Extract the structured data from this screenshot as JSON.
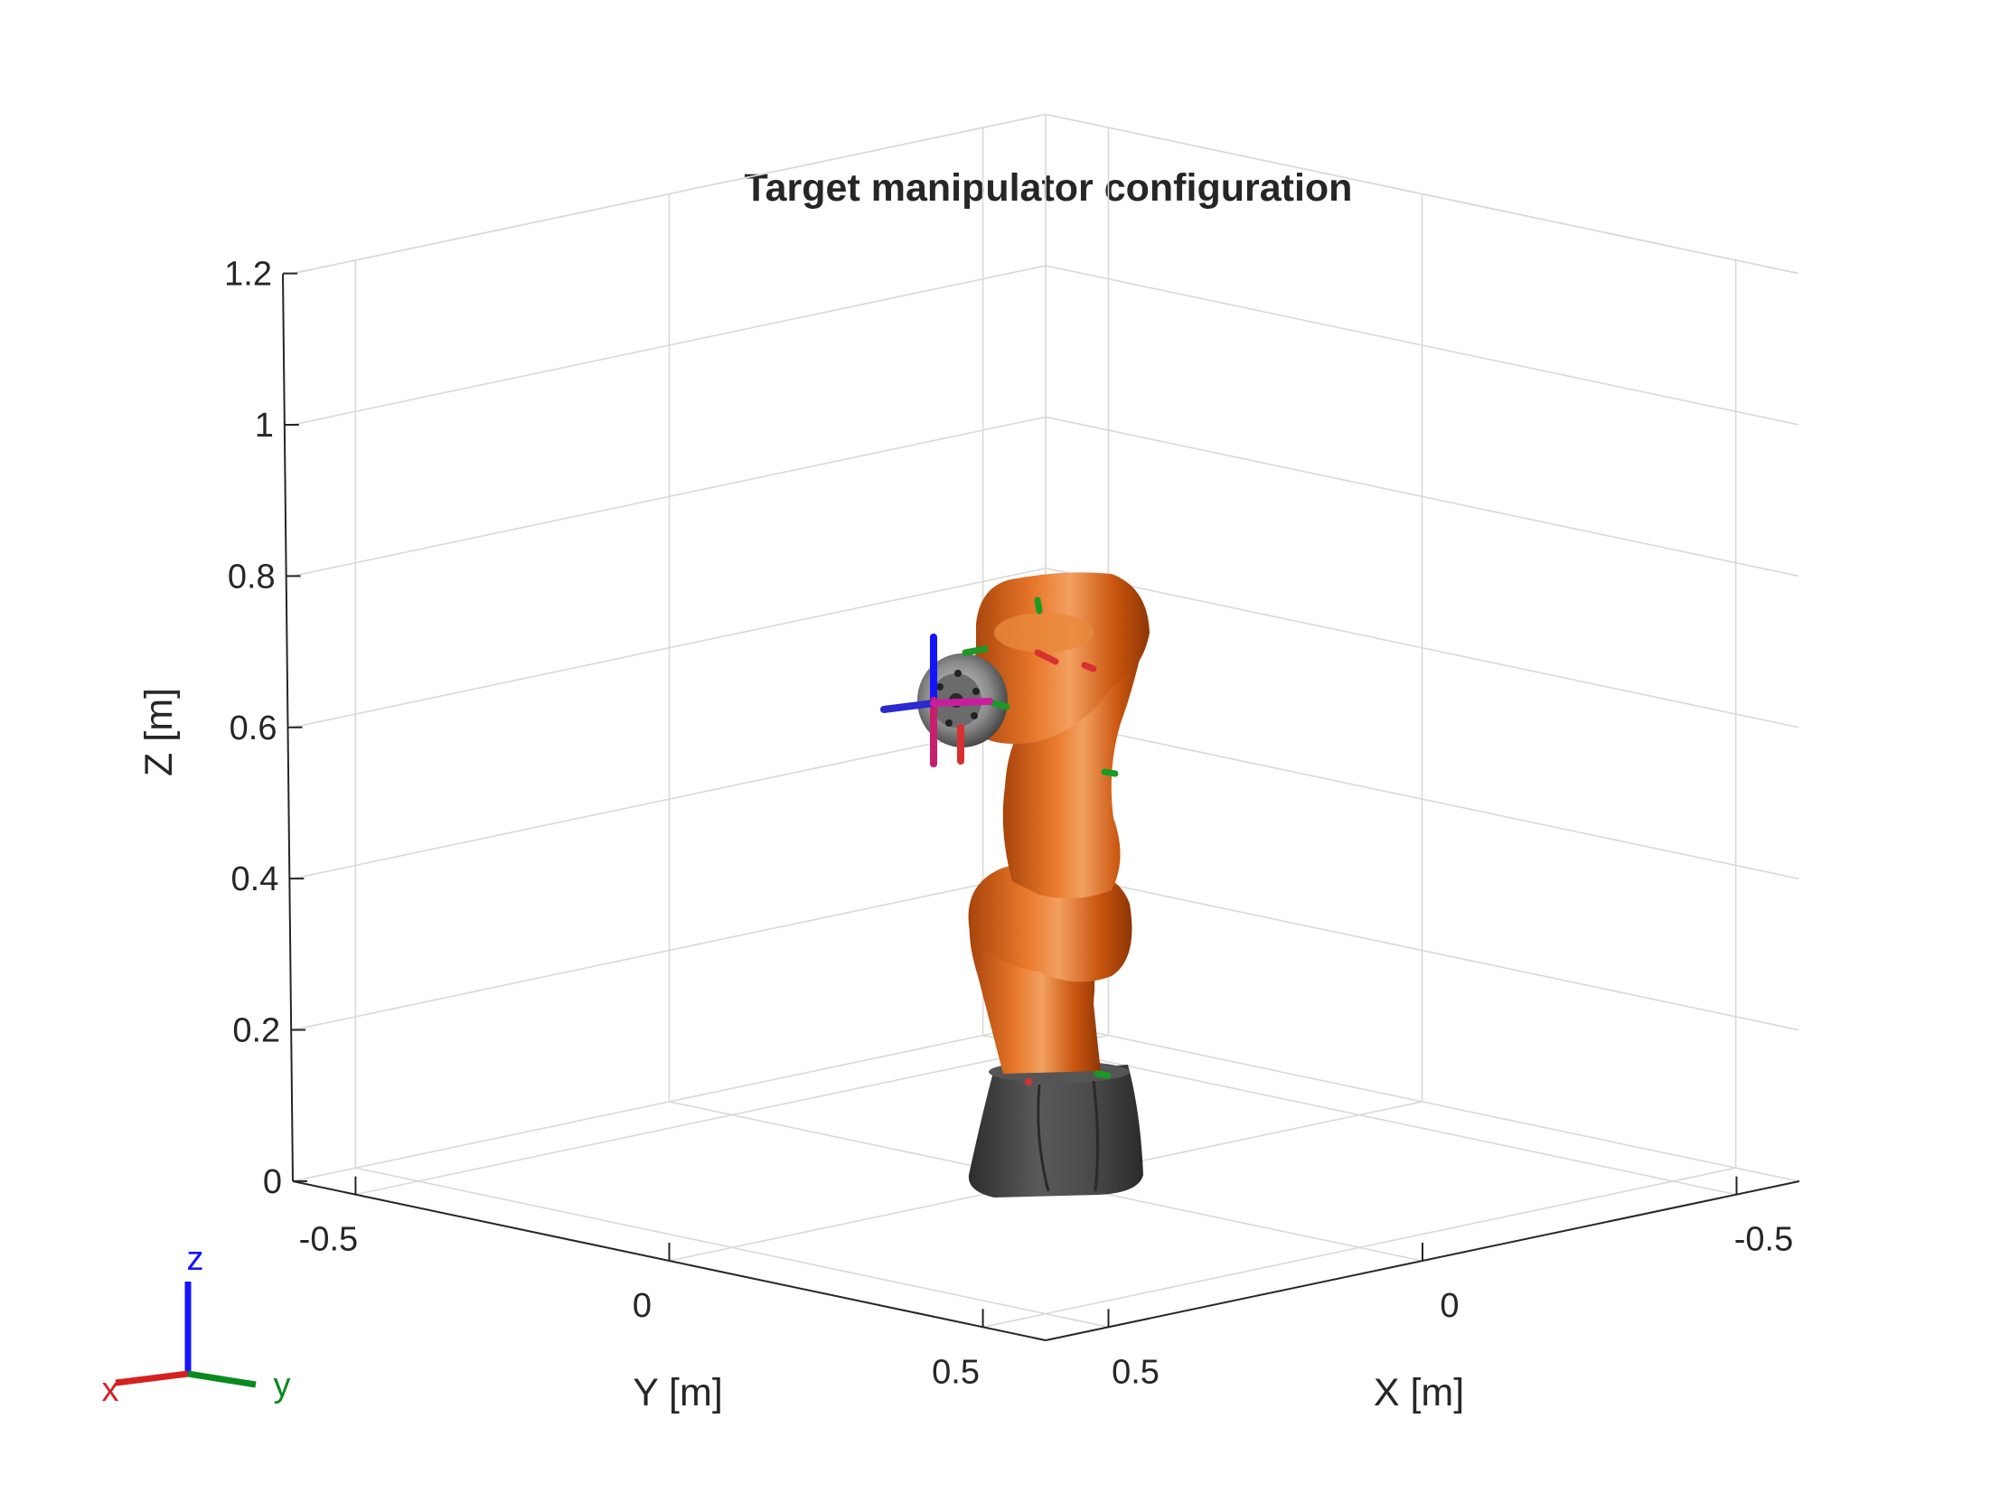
{
  "chart_data": {
    "type": "3d-robot-visualization",
    "title": "Target manipulator configuration",
    "xlabel": "X [m]",
    "ylabel": "Y [m]",
    "zlabel": "Z [m]",
    "x_ticks": [
      {
        "value": 0.5,
        "label": "0.5"
      },
      {
        "value": 0,
        "label": "0"
      },
      {
        "value": -0.5,
        "label": "-0.5"
      }
    ],
    "y_ticks": [
      {
        "value": -0.5,
        "label": "-0.5"
      },
      {
        "value": 0,
        "label": "0"
      },
      {
        "value": 0.5,
        "label": "0.5"
      }
    ],
    "z_ticks": [
      {
        "value": 0,
        "label": "0"
      },
      {
        "value": 0.2,
        "label": "0.2"
      },
      {
        "value": 0.4,
        "label": "0.4"
      },
      {
        "value": 0.6,
        "label": "0.6"
      },
      {
        "value": 0.8,
        "label": "0.8"
      },
      {
        "value": 1,
        "label": "1"
      },
      {
        "value": 1.2,
        "label": "1.2"
      }
    ],
    "grid": true,
    "orientation_triad": {
      "x_label": "x",
      "y_label": "y",
      "z_label": "z",
      "x_color": "#d62020",
      "y_color": "#0a8a1e",
      "z_color": "#1414ff"
    },
    "colors": {
      "robot_link": "#d65f12",
      "robot_base": "#4a4a4a",
      "grid": "#d9d9d9"
    }
  }
}
